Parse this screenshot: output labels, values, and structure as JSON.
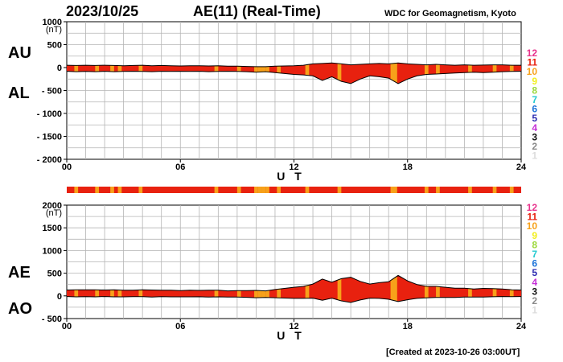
{
  "header": {
    "date": "2023/10/25",
    "title": "AE(11) (Real-Time)",
    "source": "WDC for Geomagnetism, Kyoto"
  },
  "footer": {
    "created": "[Created at 2023-10-26 03:00UT]"
  },
  "legend": {
    "items": [
      {
        "label": "12",
        "color": "#e8338c"
      },
      {
        "label": "11",
        "color": "#e8210f"
      },
      {
        "label": "10",
        "color": "#f7a11a"
      },
      {
        "label": "9",
        "color": "#f2ef1d"
      },
      {
        "label": "8",
        "color": "#9bd83a"
      },
      {
        "label": "7",
        "color": "#23c9cf"
      },
      {
        "label": "6",
        "color": "#1b72d8"
      },
      {
        "label": "5",
        "color": "#2a2ab0"
      },
      {
        "label": "4",
        "color": "#c52fd7"
      },
      {
        "label": "3",
        "color": "#111111"
      },
      {
        "label": "2",
        "color": "#8a8a8a"
      },
      {
        "label": "1",
        "color": "#dcdcdc"
      }
    ]
  },
  "chart_data": [
    {
      "type": "area",
      "title": "AU / AL",
      "ylabel": "(nT)",
      "xlabel": "U T",
      "side_labels": [
        "AU",
        "AL"
      ],
      "xlim": [
        0,
        24
      ],
      "ylim": [
        -2000,
        1000
      ],
      "yticks": [
        1000,
        500,
        0,
        -500,
        -1000,
        -1500,
        -2000
      ],
      "ytick_labels": [
        "1000",
        "500",
        "0",
        "- 500",
        "- 1000",
        "- 1500",
        "- 2000"
      ],
      "xticks": [
        0,
        6,
        12,
        18,
        24
      ],
      "xtick_labels": [
        "00",
        "06",
        "12",
        "18",
        "24"
      ],
      "grid": true,
      "series": [
        {
          "name": "AU",
          "x": [
            0,
            0.5,
            1,
            1.5,
            2,
            2.5,
            3,
            3.5,
            4,
            4.5,
            5,
            5.5,
            6,
            6.5,
            7,
            7.5,
            8,
            8.5,
            9,
            9.5,
            10,
            10.5,
            11,
            11.5,
            12,
            12.5,
            13,
            13.5,
            14,
            14.5,
            15,
            15.5,
            16,
            16.5,
            17,
            17.5,
            18,
            18.5,
            19,
            19.5,
            20,
            20.5,
            21,
            21.5,
            22,
            22.5,
            23,
            23.5,
            24
          ],
          "values": [
            50,
            45,
            50,
            45,
            50,
            45,
            40,
            45,
            50,
            40,
            45,
            40,
            35,
            40,
            40,
            35,
            40,
            30,
            30,
            25,
            20,
            20,
            30,
            35,
            40,
            50,
            80,
            90,
            100,
            80,
            60,
            70,
            80,
            90,
            80,
            100,
            80,
            70,
            60,
            70,
            60,
            50,
            60,
            50,
            55,
            60,
            60,
            50,
            50
          ]
        },
        {
          "name": "AL",
          "x": [
            0,
            0.5,
            1,
            1.5,
            2,
            2.5,
            3,
            3.5,
            4,
            4.5,
            5,
            5.5,
            6,
            6.5,
            7,
            7.5,
            8,
            8.5,
            9,
            9.5,
            10,
            10.5,
            11,
            11.5,
            12,
            12.5,
            13,
            13.5,
            14,
            14.5,
            15,
            15.5,
            16,
            16.5,
            17,
            17.5,
            18,
            18.5,
            19,
            19.5,
            20,
            20.5,
            21,
            21.5,
            22,
            22.5,
            23,
            23.5,
            24
          ],
          "values": [
            -80,
            -90,
            -85,
            -90,
            -80,
            -90,
            -85,
            -80,
            -85,
            -90,
            -80,
            -85,
            -80,
            -85,
            -80,
            -90,
            -85,
            -80,
            -85,
            -90,
            -100,
            -90,
            -110,
            -130,
            -150,
            -160,
            -180,
            -280,
            -200,
            -300,
            -350,
            -250,
            -180,
            -200,
            -230,
            -350,
            -250,
            -180,
            -150,
            -140,
            -130,
            -120,
            -110,
            -100,
            -110,
            -100,
            -90,
            -85,
            -80
          ]
        }
      ],
      "quality_strip_series": "AL"
    },
    {
      "type": "area",
      "title": "AE / AO",
      "ylabel": "(nT)",
      "xlabel": "U T",
      "side_labels": [
        "AE",
        "AO"
      ],
      "xlim": [
        0,
        24
      ],
      "ylim": [
        -500,
        2000
      ],
      "yticks": [
        2000,
        1500,
        1000,
        500,
        0,
        -500
      ],
      "ytick_labels": [
        "2000",
        "1500",
        "1000",
        "500",
        "0",
        "- 500"
      ],
      "xticks": [
        0,
        6,
        12,
        18,
        24
      ],
      "xtick_labels": [
        "00",
        "06",
        "12",
        "18",
        "24"
      ],
      "grid": true,
      "series": [
        {
          "name": "AE",
          "x": [
            0,
            0.5,
            1,
            1.5,
            2,
            2.5,
            3,
            3.5,
            4,
            4.5,
            5,
            5.5,
            6,
            6.5,
            7,
            7.5,
            8,
            8.5,
            9,
            9.5,
            10,
            10.5,
            11,
            11.5,
            12,
            12.5,
            13,
            13.5,
            14,
            14.5,
            15,
            15.5,
            16,
            16.5,
            17,
            17.5,
            18,
            18.5,
            19,
            19.5,
            20,
            20.5,
            21,
            21.5,
            22,
            22.5,
            23,
            23.5,
            24
          ],
          "values": [
            130,
            135,
            135,
            135,
            130,
            135,
            125,
            125,
            135,
            130,
            125,
            125,
            115,
            125,
            120,
            125,
            125,
            110,
            115,
            115,
            120,
            110,
            140,
            165,
            190,
            210,
            260,
            370,
            300,
            380,
            410,
            320,
            260,
            290,
            310,
            450,
            330,
            250,
            210,
            210,
            190,
            170,
            170,
            150,
            165,
            160,
            150,
            135,
            130
          ]
        },
        {
          "name": "AO",
          "x": [
            0,
            0.5,
            1,
            1.5,
            2,
            2.5,
            3,
            3.5,
            4,
            4.5,
            5,
            5.5,
            6,
            6.5,
            7,
            7.5,
            8,
            8.5,
            9,
            9.5,
            10,
            10.5,
            11,
            11.5,
            12,
            12.5,
            13,
            13.5,
            14,
            14.5,
            15,
            15.5,
            16,
            16.5,
            17,
            17.5,
            18,
            18.5,
            19,
            19.5,
            20,
            20.5,
            21,
            21.5,
            22,
            22.5,
            23,
            23.5,
            24
          ],
          "values": [
            -15,
            -22,
            -18,
            -22,
            -15,
            -22,
            -22,
            -18,
            -18,
            -25,
            -18,
            -22,
            -22,
            -22,
            -20,
            -27,
            -22,
            -25,
            -27,
            -32,
            -40,
            -35,
            -40,
            -47,
            -55,
            -55,
            -50,
            -95,
            -50,
            -110,
            -145,
            -90,
            -50,
            -55,
            -75,
            -125,
            -85,
            -55,
            -45,
            -35,
            -35,
            -35,
            -25,
            -25,
            -27,
            -20,
            -15,
            -17,
            -15
          ]
        }
      ],
      "quality_strip_series": "AO"
    }
  ],
  "quality_bands": {
    "colors": {
      "11": "#e8210f",
      "10": "#f7a11a"
    },
    "base": "11",
    "orange_hours": [
      0.4,
      1.5,
      2.3,
      2.7,
      3.8,
      7.8,
      9.0,
      9.9,
      10.1,
      10.3,
      10.5,
      11.1,
      12.6,
      14.3,
      17.1,
      17.25,
      18.9,
      19.5,
      21.2,
      22.5,
      23.4
    ]
  }
}
